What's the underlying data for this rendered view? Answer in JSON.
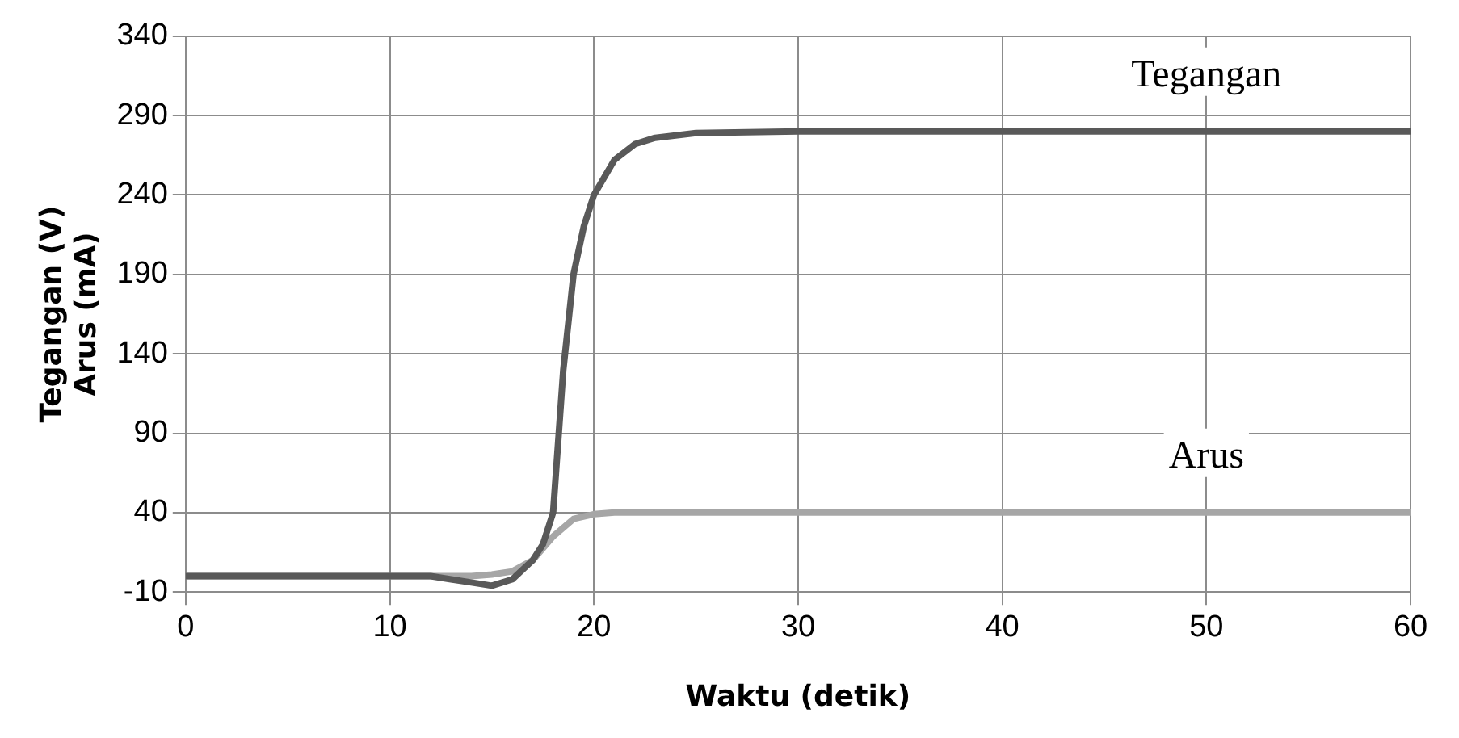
{
  "chart_data": {
    "type": "line",
    "xlabel": "Waktu (detik)",
    "ylabel": "Tegangan (V)\nArus (mA)",
    "xlim": [
      0,
      60
    ],
    "xticks": [
      0,
      10,
      20,
      30,
      40,
      50,
      60
    ],
    "ylim": [
      -10,
      340
    ],
    "yticks": [
      -10,
      40,
      90,
      140,
      190,
      240,
      290,
      340
    ],
    "grid": true,
    "legend": false,
    "marker": "none",
    "line_style": "solid",
    "series": [
      {
        "name": "Tegangan",
        "color": "#595959",
        "x": [
          0,
          5,
          10,
          12,
          13,
          14,
          15,
          16,
          17,
          17.5,
          18,
          18.5,
          19,
          19.5,
          20,
          21,
          22,
          23,
          25,
          30,
          40,
          50,
          60
        ],
        "values": [
          0,
          0,
          0,
          0,
          -2,
          -4,
          -6,
          -2,
          10,
          20,
          40,
          130,
          190,
          220,
          240,
          262,
          272,
          276,
          279,
          280,
          280,
          280,
          280
        ]
      },
      {
        "name": "Arus",
        "color": "#a6a6a6",
        "x": [
          0,
          5,
          10,
          12,
          14,
          15,
          16,
          17,
          18,
          19,
          20,
          21,
          22,
          25,
          30,
          40,
          50,
          60
        ],
        "values": [
          0,
          0,
          0,
          0,
          0,
          1,
          3,
          10,
          25,
          36,
          39,
          40,
          40,
          40,
          40,
          40,
          40,
          40
        ]
      }
    ]
  }
}
